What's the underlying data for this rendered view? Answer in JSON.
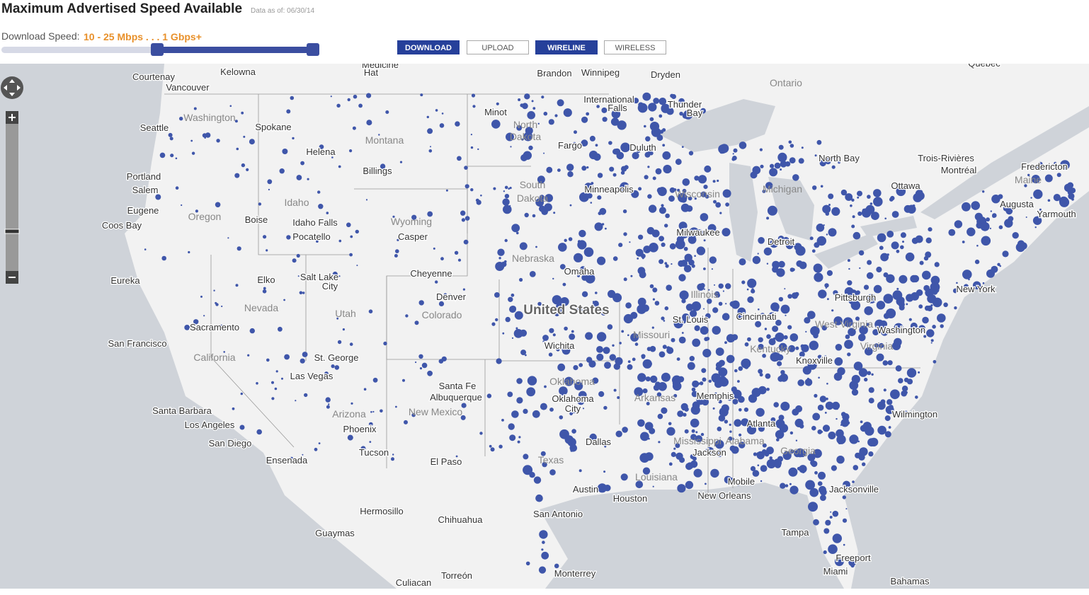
{
  "header": {
    "title": "Maximum Advertised Speed Available",
    "data_date": "Data as of: 06/30/14",
    "speed_label": "Download Speed:",
    "speed_range": "10 - 25 Mbps . . . 1 Gbps+"
  },
  "buttons": [
    "DOWNLOAD",
    "UPLOAD",
    "WIRELINE",
    "WIRELESS"
  ],
  "map_labels": [
    "Courtenay",
    "Kelowna",
    "Medicine",
    "Hat",
    "Brandon",
    "Winnipeg",
    "Dryden",
    "Quebec",
    "Vancouver",
    "Ontario",
    "Seattle",
    "Washington",
    "Spokane",
    "Montana",
    "International",
    "Falls",
    "Thunder",
    "Bay",
    "Minot",
    "North",
    "Dakota",
    "Fargo",
    "Duluth",
    "Helena",
    "North Bay",
    "Trois-Rivières",
    "Montréal",
    "Ottawa",
    "Fredericton",
    "Portland",
    "Salem",
    "Billings",
    "South",
    "Dakota",
    "Minneapolis",
    "Wisconsin",
    "Michigan",
    "Maine",
    "Augusta",
    "Yarmouth",
    "Eugene",
    "Oregon",
    "Idaho",
    "Boise",
    "Idaho Falls",
    "Pocatello",
    "Wyoming",
    "Casper",
    "Coos Bay",
    "Milwaukee",
    "Detroit",
    "Nebraska",
    "Omaha",
    "Eureka",
    "Elko",
    "Salt Lake",
    "City",
    "Cheyenne",
    "Nevada",
    "Denver",
    "Utah",
    "Colorado",
    "United States",
    "Illinois",
    "Pittsburgh",
    "New York",
    "Cincinnati",
    "St. Louis",
    "Missouri",
    "West Virginia",
    "Washington",
    "Kentucky",
    "Virginia",
    "Sacramento",
    "San Francisco",
    "Wichita",
    "California",
    "St. George",
    "Las Vegas",
    "Oklahoma",
    "Oklahoma",
    "City",
    "Knoxville",
    "Santa Fe",
    "Albuquerque",
    "Arkansas",
    "Memphis",
    "Arizona",
    "New Mexico",
    "Wilmington",
    "Santa Barbara",
    "Los Angeles",
    "Phoenix",
    "San Diego",
    "Dallas",
    "Atlanta",
    "Mississippi",
    "Alabama",
    "Jackson",
    "Georgia",
    "Tucson",
    "El Paso",
    "Ensenada",
    "Texas",
    "Louisiana",
    "Mobile",
    "Jacksonville",
    "Austin",
    "Houston",
    "New Orleans",
    "San Antonio",
    "Hermosillo",
    "Chihuahua",
    "Guaymas",
    "Tampa",
    "Freeport",
    "Miami",
    "Monterrey",
    "Torreón",
    "Culiacan",
    "Bahamas"
  ]
}
